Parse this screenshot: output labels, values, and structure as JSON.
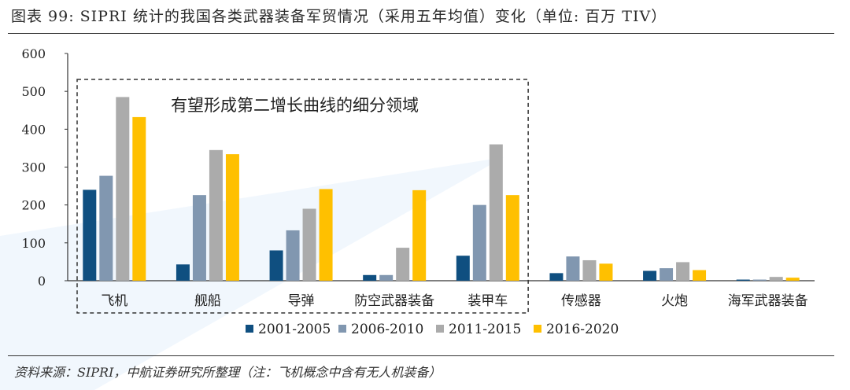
{
  "title": "图表 99: SIPRI 统计的我国各类武器装备军贸情况（采用五年均值）变化（单位: 百万 TIV）",
  "source": "资料来源：SIPRI，中航证券研究所整理（注：飞机概念中含有无人机装备）",
  "annotation": "有望形成第二增长曲线的细分领域",
  "colors": {
    "s1": "#0f4f80",
    "s2": "#8197b0",
    "s3": "#ababab",
    "s4": "#ffc000",
    "box": "#333333",
    "axis": "#333333"
  },
  "chart_data": {
    "type": "bar",
    "title": "SIPRI 统计的我国各类武器装备军贸情况（采用五年均值）变化（单位: 百万 TIV）",
    "xlabel": "",
    "ylabel": "",
    "ylim": [
      0,
      600
    ],
    "yticks": [
      0,
      100,
      200,
      300,
      400,
      500,
      600
    ],
    "categories": [
      "飞机",
      "舰船",
      "导弹",
      "防空武器装备",
      "装甲车",
      "传感器",
      "火炮",
      "海军武器装备"
    ],
    "highlight_categories": [
      "飞机",
      "舰船",
      "导弹",
      "防空武器装备",
      "装甲车"
    ],
    "legend_position": "bottom",
    "series": [
      {
        "name": "2001-2005",
        "color": "#0f4f80",
        "values": [
          240,
          43,
          80,
          15,
          66,
          20,
          26,
          3
        ]
      },
      {
        "name": "2006-2010",
        "color": "#8197b0",
        "values": [
          277,
          226,
          133,
          15,
          200,
          64,
          33,
          3
        ]
      },
      {
        "name": "2011-2015",
        "color": "#ababab",
        "values": [
          485,
          345,
          190,
          87,
          360,
          54,
          49,
          10
        ]
      },
      {
        "name": "2016-2020",
        "color": "#ffc000",
        "values": [
          432,
          334,
          242,
          239,
          226,
          45,
          28,
          8
        ]
      }
    ]
  }
}
